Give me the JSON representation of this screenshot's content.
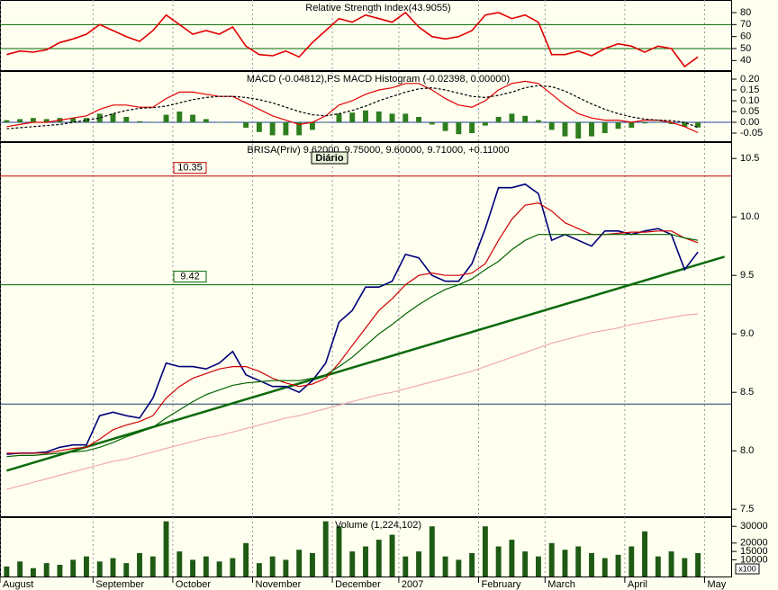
{
  "chart_data": [
    {
      "type": "line",
      "title": "Relative Strength Index(43.9055)",
      "ylim": [
        32,
        90.5
      ],
      "yticks": [
        80,
        70,
        60,
        50,
        40
      ],
      "hlines": [
        70,
        50
      ],
      "hline_color": "#006400",
      "series": [
        {
          "color": "#e00000",
          "values": [
            45,
            48,
            47,
            49,
            55,
            58,
            62,
            70,
            65,
            60,
            56,
            65,
            78,
            70,
            62,
            65,
            62,
            68,
            52,
            45,
            44,
            48,
            43,
            55,
            65,
            75,
            72,
            78,
            75,
            72,
            80,
            68,
            60,
            58,
            60,
            65,
            78,
            80,
            75,
            78,
            72,
            45,
            45,
            48,
            44,
            50,
            54,
            52,
            47,
            52,
            50,
            35,
            43,
            null,
            null
          ]
        }
      ]
    },
    {
      "type": "combo",
      "title": "MACD (-0.04812),PS MACD Histogram (-0.02398, 0.00000)",
      "ylim": [
        -0.0875,
        0.2375
      ],
      "yticks": [
        {
          "value": 0.2,
          "label": "0.20"
        },
        {
          "value": 0.15,
          "label": "0.15"
        },
        {
          "value": 0.1,
          "label": "0.10"
        },
        {
          "value": 0.05,
          "label": "0.05"
        },
        {
          "value": 0,
          "label": "0.00"
        },
        {
          "value": -0.05,
          "label": "-0.05"
        }
      ],
      "series": [
        {
          "type": "bar",
          "color": "#2e7d1e",
          "values": [
            0.01,
            0.015,
            0.02,
            0.015,
            0.02,
            0.02,
            0.02,
            0.04,
            0.04,
            0.025,
            0.005,
            0.002,
            0.035,
            0.05,
            0.035,
            0.015,
            0,
            0,
            -0.025,
            -0.045,
            -0.06,
            -0.06,
            -0.06,
            -0.035,
            0,
            0.04,
            0.045,
            0.055,
            0.05,
            0.04,
            0.04,
            0.025,
            -0.01,
            -0.04,
            -0.055,
            -0.05,
            -0.015,
            0.025,
            0.04,
            0.03,
            0.01,
            -0.035,
            -0.065,
            -0.075,
            -0.065,
            -0.05,
            -0.03,
            -0.025,
            -0.005,
            0,
            -0.008,
            -0.02,
            -0.024,
            null,
            null
          ]
        },
        {
          "type": "line",
          "color": "#e00000",
          "values": [
            -0.02,
            -0.01,
            0,
            0,
            0.01,
            0.02,
            0.03,
            0.06,
            0.08,
            0.08,
            0.07,
            0.07,
            0.11,
            0.14,
            0.14,
            0.13,
            0.12,
            0.12,
            0.09,
            0.06,
            0.03,
            0.01,
            -0.01,
            0,
            0.03,
            0.08,
            0.1,
            0.13,
            0.15,
            0.16,
            0.18,
            0.18,
            0.15,
            0.11,
            0.08,
            0.07,
            0.1,
            0.15,
            0.18,
            0.19,
            0.18,
            0.13,
            0.08,
            0.04,
            0.02,
            0.01,
            0.01,
            0,
            0.01,
            0.01,
            0,
            -0.02,
            -0.048,
            null,
            null
          ]
        },
        {
          "type": "line",
          "color": "#000000",
          "dash": true,
          "values": [
            -0.03,
            -0.025,
            -0.02,
            -0.015,
            -0.01,
            0,
            0.01,
            0.02,
            0.04,
            0.055,
            0.065,
            0.068,
            0.075,
            0.09,
            0.105,
            0.115,
            0.12,
            0.12,
            0.115,
            0.105,
            0.09,
            0.07,
            0.05,
            0.035,
            0.03,
            0.04,
            0.055,
            0.075,
            0.1,
            0.12,
            0.14,
            0.155,
            0.16,
            0.15,
            0.135,
            0.12,
            0.115,
            0.125,
            0.14,
            0.16,
            0.17,
            0.165,
            0.145,
            0.115,
            0.085,
            0.06,
            0.04,
            0.025,
            0.015,
            0.01,
            0.008,
            0,
            -0.024,
            null,
            null
          ]
        }
      ]
    },
    {
      "type": "line",
      "title": "BRISA(Priv) 9.62000, 9.75000, 9.60000, 9.71000, +0.11000",
      "badge": "Diário",
      "ylim": [
        7.44,
        10.64
      ],
      "yticks": [
        10.5,
        {
          "value": 10,
          "label": "10.0"
        },
        9.5,
        {
          "value": 9,
          "label": "9.0"
        },
        8.5,
        {
          "value": 8,
          "label": "8.0"
        },
        7.5
      ],
      "levels": [
        {
          "value": 10.35,
          "color": "#c00000",
          "boxed": true
        },
        {
          "value": 9.42,
          "color": "#006400",
          "boxed": true
        },
        {
          "value": 8.4,
          "color": "#1f3f5f",
          "boxed": false
        }
      ],
      "trendline": {
        "x": [
          0,
          54
        ],
        "values": [
          7.83,
          9.66
        ],
        "color": "#0a6a0a"
      },
      "series": [
        {
          "color": "#00007a",
          "values": [
            7.97,
            7.98,
            7.98,
            7.99,
            8.03,
            8.05,
            8.05,
            8.3,
            8.33,
            8.3,
            8.28,
            8.45,
            8.75,
            8.72,
            8.72,
            8.7,
            8.75,
            8.85,
            8.65,
            8.6,
            8.55,
            8.55,
            8.5,
            8.6,
            8.75,
            9.1,
            9.2,
            9.4,
            9.4,
            9.45,
            9.68,
            9.65,
            9.5,
            9.45,
            9.45,
            9.6,
            9.9,
            10.25,
            10.25,
            10.28,
            10.2,
            9.8,
            9.85,
            9.8,
            9.75,
            9.88,
            9.88,
            9.85,
            9.88,
            9.9,
            9.85,
            9.55,
            9.7,
            null,
            null
          ]
        },
        {
          "color": "#d00000",
          "values": [
            7.98,
            7.98,
            7.98,
            7.98,
            8,
            8.02,
            8.03,
            8.1,
            8.18,
            8.22,
            8.25,
            8.3,
            8.45,
            8.55,
            8.62,
            8.66,
            8.7,
            8.72,
            8.72,
            8.68,
            8.62,
            8.58,
            8.55,
            8.57,
            8.62,
            8.75,
            8.9,
            9.05,
            9.2,
            9.3,
            9.42,
            9.5,
            9.52,
            9.5,
            9.5,
            9.52,
            9.6,
            9.8,
            9.98,
            10.1,
            10.12,
            10.05,
            9.95,
            9.9,
            9.85,
            9.85,
            9.86,
            9.87,
            9.87,
            9.88,
            9.88,
            9.82,
            9.78,
            null,
            null
          ]
        },
        {
          "color": "#006400",
          "values": [
            7.95,
            7.96,
            7.96,
            7.97,
            7.98,
            7.99,
            8,
            8.03,
            8.07,
            8.12,
            8.16,
            8.2,
            8.28,
            8.35,
            8.42,
            8.48,
            8.52,
            8.56,
            8.58,
            8.59,
            8.6,
            8.6,
            8.6,
            8.62,
            8.65,
            8.72,
            8.8,
            8.9,
            9,
            9.08,
            9.17,
            9.25,
            9.32,
            9.38,
            9.42,
            9.47,
            9.55,
            9.62,
            9.72,
            9.8,
            9.85,
            9.85,
            9.85,
            9.85,
            9.85,
            9.85,
            9.85,
            9.85,
            9.85,
            9.85,
            9.85,
            9.82,
            9.8,
            null,
            null
          ]
        },
        {
          "color": "#f0a8b0",
          "values": [
            7.67,
            7.7,
            7.73,
            7.76,
            7.79,
            7.82,
            7.85,
            7.88,
            7.91,
            7.93,
            7.96,
            7.99,
            8.02,
            8.05,
            8.08,
            8.11,
            8.13,
            8.16,
            8.19,
            8.22,
            8.25,
            8.28,
            8.3,
            8.33,
            8.36,
            8.39,
            8.42,
            8.45,
            8.48,
            8.5,
            8.53,
            8.56,
            8.59,
            8.62,
            8.65,
            8.68,
            8.72,
            8.76,
            8.8,
            8.84,
            8.88,
            8.92,
            8.95,
            8.98,
            9.01,
            9.03,
            9.05,
            9.08,
            9.1,
            9.12,
            9.14,
            9.16,
            9.17,
            null,
            null
          ]
        }
      ]
    },
    {
      "type": "bar",
      "title": "Volume (1,224,102)",
      "unit": "x100",
      "color": "#1e5a14",
      "ylim": [
        0,
        35500
      ],
      "yticks": [
        30000,
        20000,
        15000,
        10000
      ],
      "categories": [
        "August",
        null,
        null,
        null,
        null,
        null,
        null,
        "September",
        null,
        null,
        null,
        null,
        null,
        "October",
        null,
        null,
        null,
        null,
        null,
        "November",
        null,
        null,
        null,
        null,
        null,
        "December",
        null,
        null,
        null,
        null,
        "2007",
        null,
        null,
        null,
        null,
        null,
        "February",
        null,
        null,
        null,
        null,
        "March",
        null,
        null,
        null,
        null,
        null,
        "April",
        null,
        null,
        null,
        null,
        null,
        "May",
        null
      ],
      "values": [
        6000,
        9000,
        5000,
        8000,
        7000,
        10000,
        12000,
        9000,
        11000,
        8000,
        14000,
        12000,
        33000,
        15000,
        10000,
        12000,
        9000,
        11000,
        20000,
        8000,
        12000,
        10000,
        16000,
        14000,
        33000,
        30000,
        15000,
        18000,
        22000,
        25000,
        12000,
        15000,
        30000,
        12000,
        10000,
        14000,
        30000,
        18000,
        22000,
        15000,
        12000,
        20000,
        16000,
        18000,
        14000,
        11000,
        13000,
        18000,
        27000,
        12000,
        15000,
        11000,
        14000,
        null,
        null
      ]
    }
  ]
}
